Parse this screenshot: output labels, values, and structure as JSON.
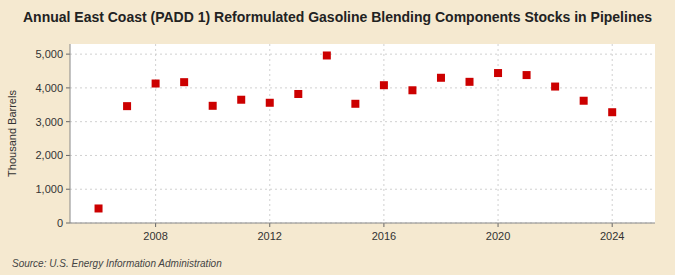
{
  "chart_data": {
    "type": "scatter",
    "title": "Annual East Coast (PADD 1) Reformulated Gasoline Blending Components Stocks in Pipelines",
    "ylabel": "Thousand Barrels",
    "annotations": [
      "Source: U.S. Energy Information Administration"
    ],
    "x": [
      2006,
      2007,
      2008,
      2009,
      2010,
      2011,
      2012,
      2013,
      2014,
      2015,
      2016,
      2017,
      2018,
      2019,
      2020,
      2021,
      2022,
      2023,
      2024
    ],
    "values": [
      430,
      3460,
      4130,
      4170,
      3470,
      3650,
      3560,
      3820,
      4960,
      3530,
      4080,
      3930,
      4300,
      4180,
      4440,
      4380,
      4040,
      3620,
      3280
    ],
    "color": "#cc0000",
    "marker": "square",
    "xlim": [
      2005.0,
      2025.5
    ],
    "ylim": [
      0,
      5300
    ],
    "xticks": [
      2008,
      2012,
      2016,
      2020,
      2024
    ],
    "yticks": [
      0,
      {
        "value": 1000,
        "label": "1,000"
      },
      {
        "value": 2000,
        "label": "2,000"
      },
      {
        "value": 3000,
        "label": "3,000"
      },
      {
        "value": 4000,
        "label": "4,000"
      },
      {
        "value": 5000,
        "label": "5,000"
      }
    ],
    "grid": true
  }
}
